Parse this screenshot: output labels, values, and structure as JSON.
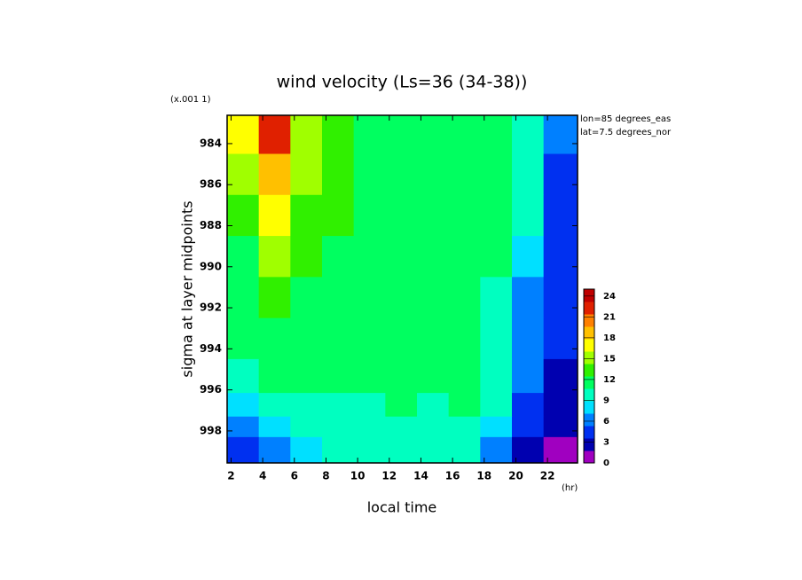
{
  "chart_data": {
    "type": "contour",
    "title": "wind velocity (Ls=36 (34-38))",
    "y_scale_note": "(x.001 1)",
    "x_label": "local time",
    "x_unit": "(hr)",
    "y_label": "sigma at layer midpoints",
    "annotations": [
      "lon=85 degrees_eas",
      "lat=7.5 degrees_nor"
    ],
    "x": [
      2.75,
      4.75,
      6.75,
      8.75,
      10.75,
      12.75,
      14.75,
      16.75,
      18.75,
      20.75,
      22.75
    ],
    "y": [
      983.5,
      985.5,
      987.5,
      989.5,
      991.5,
      993.5,
      995.5,
      996.8,
      997.8,
      998.8
    ],
    "z": [
      [
        17,
        22,
        16,
        13,
        12,
        12,
        11,
        11,
        11,
        10,
        6
      ],
      [
        15,
        19,
        15,
        13,
        12,
        12,
        12,
        12,
        11,
        9,
        5
      ],
      [
        13,
        17,
        14,
        13,
        12,
        12,
        12,
        12,
        11,
        9,
        4
      ],
      [
        12,
        15,
        13,
        12,
        12,
        12,
        12,
        12,
        11,
        8,
        4
      ],
      [
        12,
        13,
        12,
        12,
        12,
        12,
        12,
        12,
        10,
        7,
        4
      ],
      [
        11,
        12,
        12,
        12,
        12,
        12,
        12,
        12,
        10,
        7,
        4
      ],
      [
        10,
        11,
        11,
        11,
        11,
        11,
        11,
        11,
        9,
        6,
        3
      ],
      [
        8,
        9,
        10,
        10,
        10,
        11,
        10,
        11,
        9,
        5,
        3
      ],
      [
        6,
        8,
        9,
        9,
        9,
        10,
        9,
        10,
        8,
        4,
        2
      ],
      [
        4,
        6,
        8,
        9,
        9,
        9,
        9,
        9,
        7,
        3,
        1
      ]
    ],
    "xlim": [
      1.75,
      23.9
    ],
    "xticks": [
      2,
      4,
      6,
      8,
      10,
      12,
      14,
      16,
      18,
      20,
      22
    ],
    "ylim": [
      999.56,
      982.62
    ],
    "yticks": [
      984,
      986,
      988,
      990,
      992,
      994,
      996,
      998
    ],
    "clim": [
      0,
      25
    ],
    "cticks": [
      0,
      3,
      6,
      9,
      12,
      15,
      18,
      21,
      24
    ],
    "colormap": [
      "#a000c0",
      "#0000b0",
      "#0030f0",
      "#0080ff",
      "#00e0ff",
      "#00ffc0",
      "#00ff60",
      "#30f000",
      "#a0ff00",
      "#ffff00",
      "#ffc000",
      "#ff8000",
      "#e02000",
      "#c00000"
    ]
  }
}
